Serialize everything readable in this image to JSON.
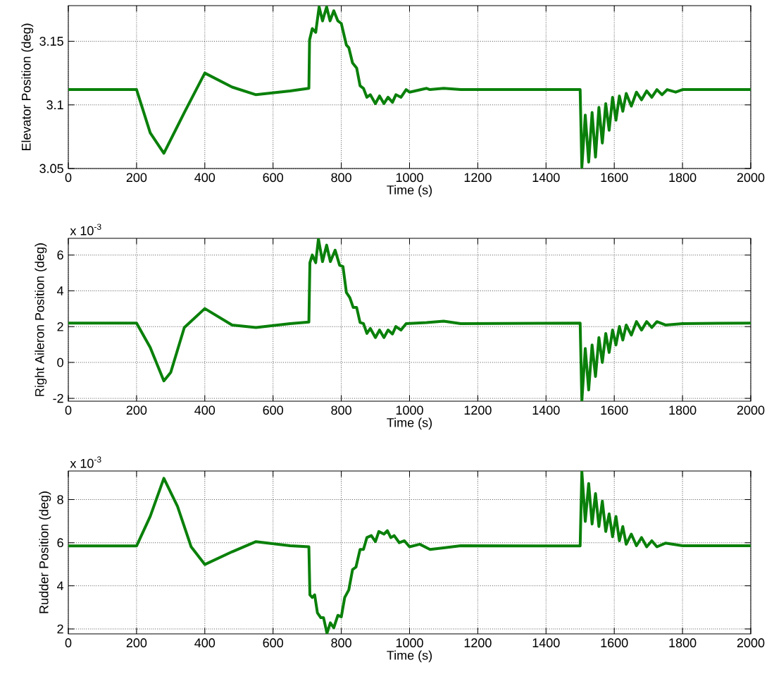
{
  "chart_data": [
    {
      "type": "line",
      "xlabel": "Time (s)",
      "ylabel": "Elevator Position (deg)",
      "x": [
        0,
        200,
        240,
        280,
        340,
        400,
        480,
        550,
        650,
        705,
        707,
        715,
        725,
        735,
        745,
        757,
        767,
        778,
        790,
        800,
        815,
        822,
        833,
        845,
        855,
        865,
        875,
        885,
        900,
        912,
        925,
        937,
        950,
        960,
        975,
        990,
        1000,
        1050,
        1060,
        1100,
        1150,
        1500,
        1505,
        1515,
        1525,
        1535,
        1545,
        1555,
        1565,
        1575,
        1585,
        1595,
        1605,
        1615,
        1625,
        1635,
        1650,
        1665,
        1680,
        1695,
        1710,
        1725,
        1740,
        1755,
        1780,
        1800,
        2000
      ],
      "series": [
        {
          "color": "#0a800a",
          "values": [
            3.112,
            3.112,
            3.078,
            3.062,
            3.094,
            3.125,
            3.114,
            3.108,
            3.111,
            3.113,
            3.151,
            3.16,
            3.157,
            3.177,
            3.166,
            3.177,
            3.166,
            3.174,
            3.166,
            3.164,
            3.147,
            3.145,
            3.133,
            3.129,
            3.115,
            3.113,
            3.106,
            3.108,
            3.101,
            3.107,
            3.101,
            3.106,
            3.102,
            3.108,
            3.106,
            3.112,
            3.11,
            3.113,
            3.112,
            3.113,
            3.112,
            3.112,
            3.051,
            3.092,
            3.055,
            3.094,
            3.059,
            3.098,
            3.07,
            3.101,
            3.08,
            3.106,
            3.088,
            3.107,
            3.095,
            3.109,
            3.099,
            3.11,
            3.104,
            3.111,
            3.106,
            3.112,
            3.108,
            3.112,
            3.11,
            3.112,
            3.112
          ]
        }
      ],
      "xlim": [
        0,
        2000
      ],
      "ylim": [
        3.05,
        3.178
      ],
      "xticks": [
        0,
        200,
        400,
        600,
        800,
        1000,
        1200,
        1400,
        1600,
        1800,
        2000
      ],
      "yticks": [
        3.05,
        3.1,
        3.15
      ],
      "grid": true
    },
    {
      "type": "line",
      "xlabel": "Time (s)",
      "ylabel": "Right Aileron Position (deg)",
      "annotations": [
        "x 10$^{-3}$"
      ],
      "x": [
        0,
        200,
        240,
        280,
        300,
        340,
        400,
        480,
        550,
        650,
        705,
        708,
        715,
        725,
        733,
        745,
        757,
        768,
        782,
        795,
        805,
        815,
        825,
        835,
        845,
        855,
        865,
        875,
        885,
        900,
        912,
        925,
        937,
        950,
        960,
        975,
        990,
        1050,
        1100,
        1150,
        1500,
        1505,
        1515,
        1525,
        1535,
        1545,
        1555,
        1565,
        1575,
        1585,
        1595,
        1605,
        1615,
        1625,
        1635,
        1650,
        1665,
        1680,
        1695,
        1710,
        1725,
        1750,
        1800,
        2000
      ],
      "series": [
        {
          "color": "#0a800a",
          "values": [
            2.2,
            2.2,
            0.84,
            -1.03,
            -0.56,
            1.95,
            3.01,
            2.09,
            1.95,
            2.17,
            2.26,
            5.57,
            6.0,
            5.57,
            6.9,
            5.63,
            6.55,
            5.63,
            6.27,
            5.43,
            5.35,
            3.9,
            3.62,
            3.07,
            3.07,
            2.23,
            2.17,
            1.62,
            1.9,
            1.39,
            1.81,
            1.39,
            1.81,
            1.59,
            2.01,
            1.81,
            2.17,
            2.23,
            2.31,
            2.17,
            2.2,
            -2.15,
            0.78,
            -1.53,
            0.98,
            -0.78,
            1.39,
            0.0,
            1.62,
            0.56,
            1.81,
            0.98,
            2.01,
            1.25,
            2.09,
            1.53,
            2.28,
            1.81,
            2.28,
            1.95,
            2.28,
            2.09,
            2.17,
            2.2
          ]
        }
      ],
      "xlim": [
        0,
        2000
      ],
      "ylim": [
        -2.16,
        6.93
      ],
      "xticks": [
        0,
        200,
        400,
        600,
        800,
        1000,
        1200,
        1400,
        1600,
        1800,
        2000
      ],
      "yticks": [
        -2,
        0,
        2,
        4,
        6
      ],
      "grid": true
    },
    {
      "type": "line",
      "xlabel": "Time (s)",
      "ylabel": "Rudder Position (deg)",
      "annotations": [
        "x 10$^{-3}$"
      ],
      "x": [
        0,
        200,
        240,
        280,
        320,
        360,
        400,
        480,
        550,
        650,
        705,
        708,
        715,
        722,
        730,
        740,
        748,
        758,
        768,
        778,
        790,
        800,
        810,
        822,
        833,
        843,
        855,
        865,
        875,
        888,
        900,
        910,
        925,
        935,
        945,
        955,
        970,
        985,
        1000,
        1030,
        1060,
        1100,
        1150,
        1500,
        1505,
        1515,
        1525,
        1535,
        1545,
        1555,
        1565,
        1575,
        1585,
        1595,
        1605,
        1615,
        1625,
        1635,
        1650,
        1665,
        1680,
        1695,
        1710,
        1725,
        1750,
        1800,
        2000
      ],
      "series": [
        {
          "color": "#0a800a",
          "values": [
            5.85,
            5.85,
            7.22,
            8.99,
            7.69,
            5.81,
            4.99,
            5.58,
            6.05,
            5.86,
            5.81,
            3.58,
            3.46,
            3.58,
            2.75,
            2.52,
            2.52,
            1.8,
            2.28,
            2.05,
            2.63,
            2.56,
            3.46,
            3.81,
            4.75,
            4.87,
            5.69,
            5.69,
            6.24,
            6.33,
            6.05,
            6.52,
            6.4,
            6.56,
            6.24,
            6.33,
            6.0,
            6.09,
            5.81,
            5.93,
            5.69,
            5.76,
            5.86,
            5.85,
            9.3,
            6.99,
            8.75,
            6.87,
            8.28,
            6.75,
            7.93,
            6.52,
            7.34,
            6.28,
            7.22,
            6.09,
            6.75,
            5.93,
            6.4,
            5.86,
            6.24,
            5.81,
            6.09,
            5.81,
            5.98,
            5.86,
            5.86
          ]
        }
      ],
      "xlim": [
        0,
        2000
      ],
      "ylim": [
        1.77,
        9.33
      ],
      "xticks": [
        0,
        200,
        400,
        600,
        800,
        1000,
        1200,
        1400,
        1600,
        1800,
        2000
      ],
      "yticks": [
        2,
        4,
        6,
        8
      ],
      "grid": true
    }
  ]
}
